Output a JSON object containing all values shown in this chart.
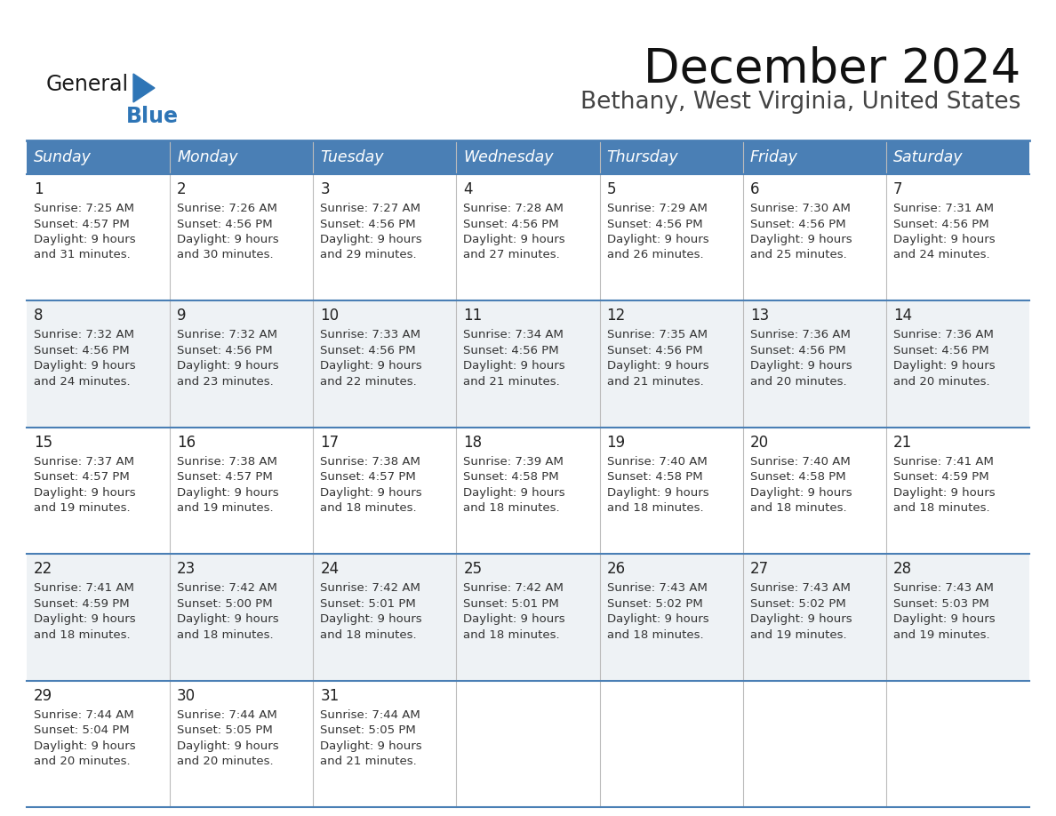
{
  "title": "December 2024",
  "subtitle": "Bethany, West Virginia, United States",
  "days_of_week": [
    "Sunday",
    "Monday",
    "Tuesday",
    "Wednesday",
    "Thursday",
    "Friday",
    "Saturday"
  ],
  "header_bg": "#4A7FB5",
  "header_text": "#FFFFFF",
  "row_bg_white": "#FFFFFF",
  "row_bg_gray": "#EEF2F5",
  "cell_text": "#333333",
  "day_num_color": "#222222",
  "border_color": "#4A7FB5",
  "logo_general_color": "#1A1A1A",
  "logo_blue_color": "#2E75B6",
  "cal_data": [
    [
      {
        "day": "1",
        "sunrise": "7:25 AM",
        "sunset": "4:57 PM",
        "daylight_mins": "31 minutes."
      },
      {
        "day": "2",
        "sunrise": "7:26 AM",
        "sunset": "4:56 PM",
        "daylight_mins": "30 minutes."
      },
      {
        "day": "3",
        "sunrise": "7:27 AM",
        "sunset": "4:56 PM",
        "daylight_mins": "29 minutes."
      },
      {
        "day": "4",
        "sunrise": "7:28 AM",
        "sunset": "4:56 PM",
        "daylight_mins": "27 minutes."
      },
      {
        "day": "5",
        "sunrise": "7:29 AM",
        "sunset": "4:56 PM",
        "daylight_mins": "26 minutes."
      },
      {
        "day": "6",
        "sunrise": "7:30 AM",
        "sunset": "4:56 PM",
        "daylight_mins": "25 minutes."
      },
      {
        "day": "7",
        "sunrise": "7:31 AM",
        "sunset": "4:56 PM",
        "daylight_mins": "24 minutes."
      }
    ],
    [
      {
        "day": "8",
        "sunrise": "7:32 AM",
        "sunset": "4:56 PM",
        "daylight_mins": "24 minutes."
      },
      {
        "day": "9",
        "sunrise": "7:32 AM",
        "sunset": "4:56 PM",
        "daylight_mins": "23 minutes."
      },
      {
        "day": "10",
        "sunrise": "7:33 AM",
        "sunset": "4:56 PM",
        "daylight_mins": "22 minutes."
      },
      {
        "day": "11",
        "sunrise": "7:34 AM",
        "sunset": "4:56 PM",
        "daylight_mins": "21 minutes."
      },
      {
        "day": "12",
        "sunrise": "7:35 AM",
        "sunset": "4:56 PM",
        "daylight_mins": "21 minutes."
      },
      {
        "day": "13",
        "sunrise": "7:36 AM",
        "sunset": "4:56 PM",
        "daylight_mins": "20 minutes."
      },
      {
        "day": "14",
        "sunrise": "7:36 AM",
        "sunset": "4:56 PM",
        "daylight_mins": "20 minutes."
      }
    ],
    [
      {
        "day": "15",
        "sunrise": "7:37 AM",
        "sunset": "4:57 PM",
        "daylight_mins": "19 minutes."
      },
      {
        "day": "16",
        "sunrise": "7:38 AM",
        "sunset": "4:57 PM",
        "daylight_mins": "19 minutes."
      },
      {
        "day": "17",
        "sunrise": "7:38 AM",
        "sunset": "4:57 PM",
        "daylight_mins": "18 minutes."
      },
      {
        "day": "18",
        "sunrise": "7:39 AM",
        "sunset": "4:58 PM",
        "daylight_mins": "18 minutes."
      },
      {
        "day": "19",
        "sunrise": "7:40 AM",
        "sunset": "4:58 PM",
        "daylight_mins": "18 minutes."
      },
      {
        "day": "20",
        "sunrise": "7:40 AM",
        "sunset": "4:58 PM",
        "daylight_mins": "18 minutes."
      },
      {
        "day": "21",
        "sunrise": "7:41 AM",
        "sunset": "4:59 PM",
        "daylight_mins": "18 minutes."
      }
    ],
    [
      {
        "day": "22",
        "sunrise": "7:41 AM",
        "sunset": "4:59 PM",
        "daylight_mins": "18 minutes."
      },
      {
        "day": "23",
        "sunrise": "7:42 AM",
        "sunset": "5:00 PM",
        "daylight_mins": "18 minutes."
      },
      {
        "day": "24",
        "sunrise": "7:42 AM",
        "sunset": "5:01 PM",
        "daylight_mins": "18 minutes."
      },
      {
        "day": "25",
        "sunrise": "7:42 AM",
        "sunset": "5:01 PM",
        "daylight_mins": "18 minutes."
      },
      {
        "day": "26",
        "sunrise": "7:43 AM",
        "sunset": "5:02 PM",
        "daylight_mins": "18 minutes."
      },
      {
        "day": "27",
        "sunrise": "7:43 AM",
        "sunset": "5:02 PM",
        "daylight_mins": "19 minutes."
      },
      {
        "day": "28",
        "sunrise": "7:43 AM",
        "sunset": "5:03 PM",
        "daylight_mins": "19 minutes."
      }
    ],
    [
      {
        "day": "29",
        "sunrise": "7:44 AM",
        "sunset": "5:04 PM",
        "daylight_mins": "20 minutes."
      },
      {
        "day": "30",
        "sunrise": "7:44 AM",
        "sunset": "5:05 PM",
        "daylight_mins": "20 minutes."
      },
      {
        "day": "31",
        "sunrise": "7:44 AM",
        "sunset": "5:05 PM",
        "daylight_mins": "21 minutes."
      },
      null,
      null,
      null,
      null
    ]
  ]
}
